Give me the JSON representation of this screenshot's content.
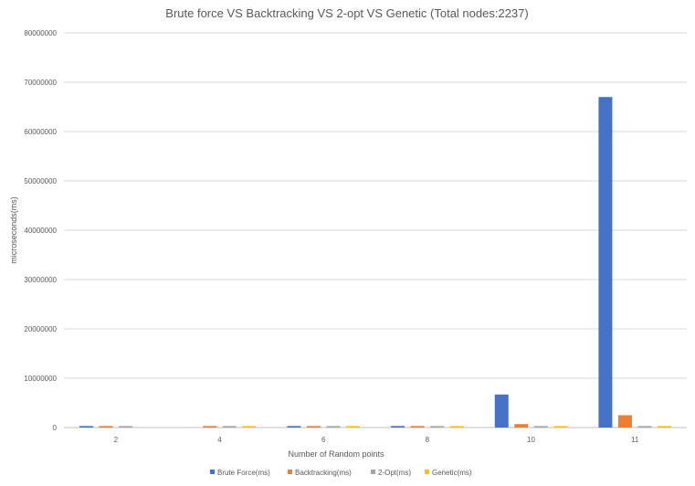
{
  "chart_data": {
    "type": "bar",
    "title": "Brute force VS Backtracking VS 2-opt VS Genetic (Total nodes:2237)",
    "xlabel": "Number of Random points",
    "ylabel": "microseconds(ms)",
    "categories": [
      "2",
      "4",
      "6",
      "8",
      "10",
      "11"
    ],
    "ylim": [
      0,
      80000000
    ],
    "yticks": [
      0,
      10000000,
      20000000,
      30000000,
      40000000,
      50000000,
      60000000,
      70000000,
      80000000
    ],
    "ytick_labels": [
      "0",
      "10000000",
      "20000000",
      "30000000",
      "40000000",
      "50000000",
      "60000000",
      "70000000",
      "80000000"
    ],
    "grid": true,
    "legend_position": "bottom",
    "series": [
      {
        "name": "Brute Force(ms)",
        "color": "#4472C4",
        "values": [
          300000,
          0,
          300000,
          300000,
          6700000,
          67000000
        ]
      },
      {
        "name": "Backtracking(ms)",
        "color": "#ED7D31",
        "values": [
          300000,
          300000,
          300000,
          300000,
          700000,
          2500000
        ]
      },
      {
        "name": "2-Opt(ms)",
        "color": "#A5A5A5",
        "values": [
          300000,
          300000,
          300000,
          300000,
          300000,
          300000
        ]
      },
      {
        "name": "Genetic(ms)",
        "color": "#FFC000",
        "values": [
          0,
          300000,
          300000,
          300000,
          300000,
          300000
        ]
      }
    ]
  }
}
